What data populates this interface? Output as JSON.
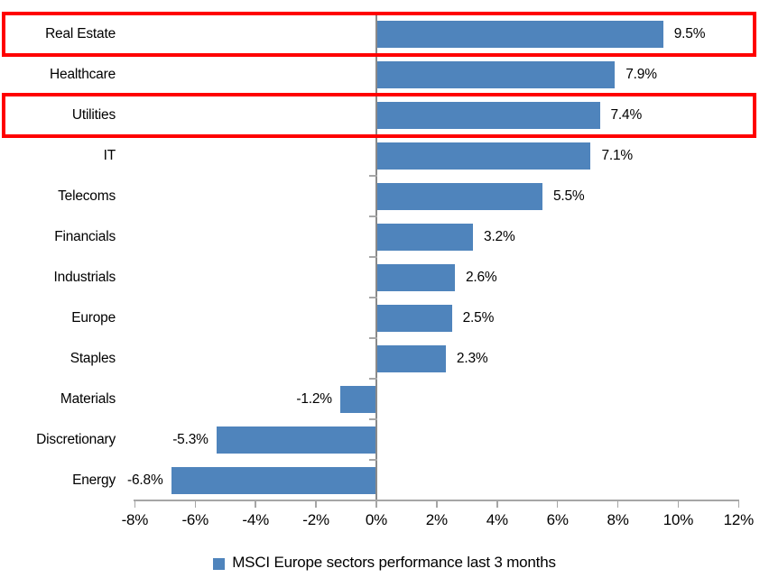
{
  "chart_data": {
    "type": "bar",
    "orientation": "horizontal",
    "title": "",
    "xlabel": "",
    "ylabel": "",
    "categories": [
      "Real Estate",
      "Healthcare",
      "Utilities",
      "IT",
      "Telecoms",
      "Financials",
      "Industrials",
      "Europe",
      "Staples",
      "Materials",
      "Discretionary",
      "Energy"
    ],
    "values": [
      9.5,
      7.9,
      7.4,
      7.1,
      5.5,
      3.2,
      2.6,
      2.5,
      2.3,
      -1.2,
      -5.3,
      -6.8
    ],
    "value_labels": [
      "9.5%",
      "7.9%",
      "7.4%",
      "7.1%",
      "5.5%",
      "3.2%",
      "2.6%",
      "2.5%",
      "2.3%",
      "-1.2%",
      "-5.3%",
      "-6.8%"
    ],
    "xlim": [
      -8,
      12
    ],
    "x_tick_values": [
      -8,
      -6,
      -4,
      -2,
      0,
      2,
      4,
      6,
      8,
      10,
      12
    ],
    "x_tick_labels": [
      "-8%",
      "-6%",
      "-4%",
      "-2%",
      "0%",
      "2%",
      "4%",
      "6%",
      "8%",
      "10%",
      "12%"
    ],
    "grid": "off",
    "bar_color": "#4f84bc",
    "highlighted_categories": [
      "Real Estate",
      "Utilities"
    ],
    "highlight_color": "#ff0000",
    "legend_position": "bottom",
    "series": [
      {
        "name": "MSCI Europe sectors performance last 3 months",
        "values": [
          9.5,
          7.9,
          7.4,
          7.1,
          5.5,
          3.2,
          2.6,
          2.5,
          2.3,
          -1.2,
          -5.3,
          -6.8
        ]
      }
    ]
  },
  "legend": {
    "label": "MSCI Europe sectors performance last 3 months",
    "marker_color": "#4f84bc"
  }
}
